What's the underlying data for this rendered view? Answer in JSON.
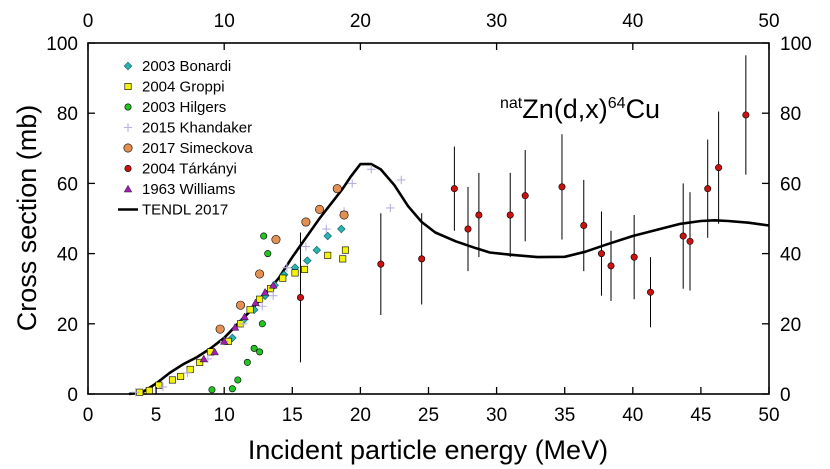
{
  "chart_data": {
    "type": "scatter",
    "title": "",
    "reaction_label": {
      "sup1": "nat",
      "main1": "Zn(d,x)",
      "sup2": "64",
      "main2": "Cu"
    },
    "xlabel": "Incident particle energy (MeV)",
    "ylabel": "Cross section (mb)",
    "xlim": [
      0,
      50
    ],
    "ylim": [
      0,
      100
    ],
    "x_ticks": [
      0,
      5,
      10,
      15,
      20,
      25,
      30,
      35,
      40,
      45,
      50
    ],
    "x_ticks_top": [
      0,
      10,
      20,
      30,
      40,
      50
    ],
    "y_ticks": [
      0,
      20,
      40,
      60,
      80,
      100
    ],
    "legend_position": "top-left",
    "series": [
      {
        "name": "2003 Bonardi",
        "marker": "diamond",
        "color": "#2bb3b3",
        "points": [
          [
            10.6,
            16
          ],
          [
            11.4,
            21
          ],
          [
            12.2,
            24
          ],
          [
            13.0,
            28
          ],
          [
            13.7,
            31
          ],
          [
            14.4,
            34
          ],
          [
            15.2,
            36
          ],
          [
            16.1,
            38
          ],
          [
            16.8,
            41
          ],
          [
            17.6,
            45
          ],
          [
            18.6,
            47
          ]
        ]
      },
      {
        "name": "2004 Groppi",
        "marker": "square",
        "color": "#f2f20a",
        "points": [
          [
            3.8,
            0.5
          ],
          [
            4.5,
            1
          ],
          [
            5.2,
            2.5
          ],
          [
            6.2,
            4
          ],
          [
            6.8,
            5
          ],
          [
            7.5,
            7
          ],
          [
            8.2,
            9
          ],
          [
            9.0,
            12
          ],
          [
            10.3,
            15
          ],
          [
            11.2,
            20
          ],
          [
            11.9,
            24
          ],
          [
            12.6,
            27
          ],
          [
            13.4,
            30
          ],
          [
            14.3,
            33
          ],
          [
            15.2,
            34.5
          ],
          [
            15.9,
            35.5
          ],
          [
            17.6,
            39.5
          ],
          [
            18.7,
            38.5
          ],
          [
            18.9,
            41
          ]
        ]
      },
      {
        "name": "2003 Hilgers",
        "marker": "circle",
        "color": "#22c422",
        "points": [
          [
            9.1,
            1.2
          ],
          [
            10.6,
            1.5
          ],
          [
            11.0,
            4
          ],
          [
            11.7,
            9
          ],
          [
            12.2,
            13
          ],
          [
            12.6,
            12
          ],
          [
            12.8,
            20
          ],
          [
            12.9,
            45
          ],
          [
            13.2,
            40
          ]
        ]
      },
      {
        "name": "2015 Khandaker",
        "marker": "plus",
        "color": "#b8b0e0",
        "points": [
          [
            3.5,
            0.5
          ],
          [
            5.5,
            2
          ],
          [
            7.3,
            6
          ],
          [
            8.8,
            10
          ],
          [
            10.0,
            15
          ],
          [
            11.4,
            20
          ],
          [
            12.8,
            25
          ],
          [
            13.6,
            28
          ],
          [
            14.6,
            36
          ],
          [
            16.0,
            42
          ],
          [
            17.5,
            47
          ],
          [
            18.8,
            52
          ],
          [
            19.4,
            60
          ],
          [
            20.8,
            64
          ],
          [
            22.2,
            53
          ],
          [
            23.0,
            61
          ]
        ]
      },
      {
        "name": "2017 Simeckova",
        "marker": "circle",
        "color": "#e39052",
        "points": [
          [
            9.7,
            18.5
          ],
          [
            11.2,
            25.3
          ],
          [
            12.6,
            34.2
          ],
          [
            13.8,
            44
          ],
          [
            16.0,
            49
          ],
          [
            17.0,
            52.6
          ],
          [
            18.3,
            58.5
          ],
          [
            18.8,
            51
          ]
        ]
      },
      {
        "name": "2004 Tárkányi",
        "marker": "circle",
        "color": "#cc1111",
        "err_color": "#000000",
        "points": [
          [
            15.6,
            27.5,
            18.5
          ],
          [
            21.5,
            37,
            14.5
          ],
          [
            24.5,
            38.5,
            13
          ],
          [
            26.9,
            58.5,
            12
          ],
          [
            27.9,
            47,
            12
          ],
          [
            28.7,
            51,
            12
          ],
          [
            31.0,
            51,
            12
          ],
          [
            32.1,
            56.5,
            13
          ],
          [
            34.8,
            59,
            15
          ],
          [
            36.4,
            48,
            13
          ],
          [
            37.7,
            40,
            12
          ],
          [
            38.4,
            36.5,
            10
          ],
          [
            40.1,
            39,
            12
          ],
          [
            41.3,
            29,
            10
          ],
          [
            43.7,
            45,
            15
          ],
          [
            44.2,
            43.5,
            14
          ],
          [
            45.5,
            58.5,
            14
          ],
          [
            46.3,
            64.5,
            16
          ],
          [
            48.3,
            79.5,
            17
          ]
        ]
      },
      {
        "name": "1963 Williams",
        "marker": "triangle",
        "color": "#9e1fb0",
        "points": [
          [
            8.5,
            10
          ],
          [
            9.3,
            12
          ],
          [
            10.0,
            15
          ],
          [
            10.8,
            19
          ],
          [
            11.5,
            22
          ],
          [
            12.3,
            26
          ],
          [
            13.0,
            29
          ],
          [
            13.6,
            31
          ]
        ]
      },
      {
        "name": "TENDL 2017",
        "marker": "line",
        "color": "#000000",
        "points": [
          [
            3,
            0
          ],
          [
            4,
            0.5
          ],
          [
            5,
            3
          ],
          [
            6,
            6
          ],
          [
            7,
            8.5
          ],
          [
            8,
            10.5
          ],
          [
            9,
            13
          ],
          [
            10,
            16
          ],
          [
            11,
            20
          ],
          [
            12,
            24
          ],
          [
            13,
            28.5
          ],
          [
            14,
            33
          ],
          [
            15,
            39
          ],
          [
            16,
            44.5
          ],
          [
            17,
            50
          ],
          [
            18,
            55
          ],
          [
            18.7,
            58.5
          ],
          [
            19.3,
            62
          ],
          [
            20,
            65.5
          ],
          [
            20.8,
            65.5
          ],
          [
            21.5,
            64
          ],
          [
            22.5,
            59.5
          ],
          [
            23.5,
            53.5
          ],
          [
            24.5,
            49
          ],
          [
            25.5,
            46
          ],
          [
            27,
            43.5
          ],
          [
            28.5,
            41.5
          ],
          [
            29.5,
            40.3
          ],
          [
            31,
            39.7
          ],
          [
            33,
            39
          ],
          [
            35,
            39.1
          ],
          [
            36.5,
            40.5
          ],
          [
            38,
            42.5
          ],
          [
            40,
            45
          ],
          [
            42,
            47
          ],
          [
            43.5,
            48.5
          ],
          [
            45,
            49.3
          ],
          [
            46,
            49.5
          ],
          [
            47,
            49.3
          ],
          [
            48.5,
            48.8
          ],
          [
            50,
            48
          ]
        ]
      }
    ]
  }
}
